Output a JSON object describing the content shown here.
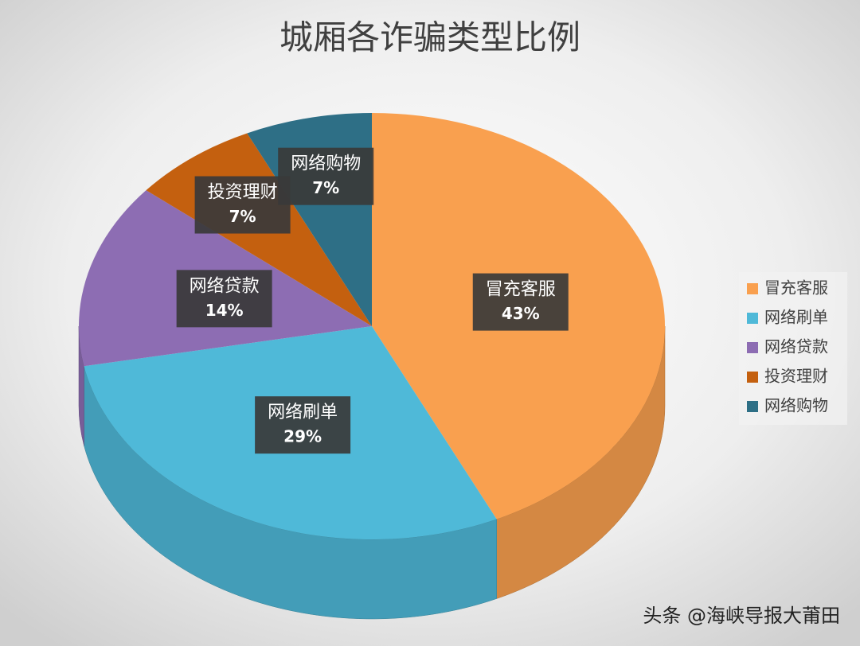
{
  "chart_data": {
    "type": "pie3d",
    "title": "城厢各诈骗类型比例",
    "categories": [
      "冒充客服",
      "网络刷单",
      "网络贷款",
      "投资理财",
      "网络购物"
    ],
    "values": [
      43,
      29,
      14,
      7,
      7
    ],
    "value_labels": [
      "43%",
      "29%",
      "14%",
      "7%",
      "7%"
    ],
    "colors": [
      "#f9a04f",
      "#4fb9d8",
      "#8d6db3",
      "#c4600f",
      "#2e6f86"
    ],
    "legend": "right",
    "watermark": "头条 @海峡导报大莆田"
  }
}
